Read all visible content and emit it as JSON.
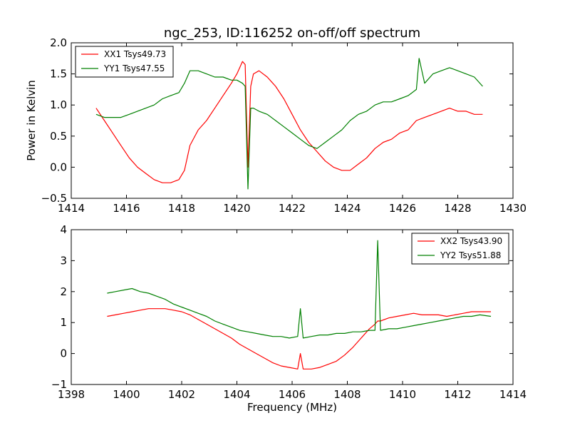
{
  "figure": {
    "title": "ngc_253, ID:116252 on-off/off spectrum"
  },
  "colors": {
    "xx": "#ff0000",
    "yy": "#008000",
    "axes": "#000000"
  },
  "chart_data": [
    {
      "type": "line",
      "title": "ngc_253, ID:116252 on-off/off spectrum",
      "xlabel": "",
      "ylabel": "Power in Kelvin",
      "xlim": [
        1414,
        1430
      ],
      "ylim": [
        -0.5,
        2.0
      ],
      "xticks": [
        "1414",
        "1416",
        "1418",
        "1420",
        "1422",
        "1424",
        "1426",
        "1428",
        "1430"
      ],
      "yticks": [
        "−0.5",
        "0.0",
        "0.5",
        "1.0",
        "1.5",
        "2.0"
      ],
      "grid": false,
      "legend": "top-left",
      "series": [
        {
          "name": "XX1 Tsys49.73",
          "color": "#ff0000",
          "x": [
            1414.9,
            1415.2,
            1415.5,
            1415.8,
            1416.1,
            1416.4,
            1416.7,
            1417.0,
            1417.3,
            1417.6,
            1417.9,
            1418.1,
            1418.3,
            1418.6,
            1418.9,
            1419.2,
            1419.5,
            1419.8,
            1420.0,
            1420.2,
            1420.3,
            1420.4,
            1420.5,
            1420.6,
            1420.8,
            1421.1,
            1421.4,
            1421.7,
            1422.0,
            1422.3,
            1422.6,
            1422.9,
            1423.2,
            1423.5,
            1423.8,
            1424.1,
            1424.4,
            1424.7,
            1425.0,
            1425.3,
            1425.6,
            1425.9,
            1426.2,
            1426.5,
            1426.8,
            1427.1,
            1427.4,
            1427.7,
            1428.0,
            1428.3,
            1428.6,
            1428.9
          ],
          "y": [
            0.95,
            0.75,
            0.55,
            0.35,
            0.15,
            0.0,
            -0.1,
            -0.2,
            -0.25,
            -0.25,
            -0.2,
            -0.05,
            0.35,
            0.6,
            0.75,
            0.95,
            1.15,
            1.35,
            1.5,
            1.7,
            1.65,
            0.0,
            1.3,
            1.5,
            1.55,
            1.45,
            1.3,
            1.1,
            0.85,
            0.6,
            0.4,
            0.25,
            0.1,
            0.0,
            -0.05,
            -0.05,
            0.05,
            0.15,
            0.3,
            0.4,
            0.45,
            0.55,
            0.6,
            0.75,
            0.8,
            0.85,
            0.9,
            0.95,
            0.9,
            0.9,
            0.85,
            0.85
          ]
        },
        {
          "name": "YY1 Tsys47.55",
          "color": "#008000",
          "x": [
            1414.9,
            1415.2,
            1415.5,
            1415.8,
            1416.1,
            1416.4,
            1416.7,
            1417.0,
            1417.3,
            1417.6,
            1417.9,
            1418.1,
            1418.3,
            1418.6,
            1418.9,
            1419.2,
            1419.5,
            1419.8,
            1420.0,
            1420.2,
            1420.3,
            1420.4,
            1420.5,
            1420.6,
            1420.8,
            1421.1,
            1421.4,
            1421.7,
            1422.0,
            1422.3,
            1422.6,
            1422.9,
            1423.2,
            1423.5,
            1423.8,
            1424.1,
            1424.4,
            1424.7,
            1425.0,
            1425.3,
            1425.6,
            1425.9,
            1426.2,
            1426.5,
            1426.6,
            1426.8,
            1427.1,
            1427.4,
            1427.7,
            1428.0,
            1428.3,
            1428.6,
            1428.9
          ],
          "y": [
            0.85,
            0.8,
            0.8,
            0.8,
            0.85,
            0.9,
            0.95,
            1.0,
            1.1,
            1.15,
            1.2,
            1.35,
            1.55,
            1.55,
            1.5,
            1.45,
            1.45,
            1.4,
            1.4,
            1.35,
            1.3,
            -0.35,
            0.95,
            0.95,
            0.9,
            0.85,
            0.75,
            0.65,
            0.55,
            0.45,
            0.35,
            0.3,
            0.4,
            0.5,
            0.6,
            0.75,
            0.85,
            0.9,
            1.0,
            1.05,
            1.05,
            1.1,
            1.15,
            1.25,
            1.75,
            1.35,
            1.5,
            1.55,
            1.6,
            1.55,
            1.5,
            1.45,
            1.3
          ]
        }
      ]
    },
    {
      "type": "line",
      "title": "",
      "xlabel": "Frequency (MHz)",
      "ylabel": "",
      "xlim": [
        1398,
        1414
      ],
      "ylim": [
        -1,
        4
      ],
      "xticks": [
        "1398",
        "1400",
        "1402",
        "1404",
        "1406",
        "1408",
        "1410",
        "1412",
        "1414"
      ],
      "yticks": [
        "−1",
        "0",
        "1",
        "2",
        "3",
        "4"
      ],
      "grid": false,
      "legend": "top-right",
      "series": [
        {
          "name": "XX2 Tsys43.90",
          "color": "#ff0000",
          "x": [
            1399.3,
            1399.6,
            1399.9,
            1400.2,
            1400.5,
            1400.8,
            1401.1,
            1401.4,
            1401.7,
            1402.0,
            1402.3,
            1402.6,
            1402.9,
            1403.2,
            1403.5,
            1403.8,
            1404.1,
            1404.4,
            1404.7,
            1405.0,
            1405.3,
            1405.6,
            1405.9,
            1406.2,
            1406.3,
            1406.4,
            1406.7,
            1407.0,
            1407.3,
            1407.6,
            1407.9,
            1408.2,
            1408.5,
            1408.8,
            1409.0,
            1409.1,
            1409.2,
            1409.5,
            1409.8,
            1410.1,
            1410.4,
            1410.7,
            1411.0,
            1411.3,
            1411.6,
            1411.9,
            1412.2,
            1412.5,
            1412.8,
            1413.2
          ],
          "y": [
            1.2,
            1.25,
            1.3,
            1.35,
            1.4,
            1.45,
            1.45,
            1.45,
            1.4,
            1.35,
            1.25,
            1.1,
            0.95,
            0.8,
            0.65,
            0.5,
            0.3,
            0.15,
            0.0,
            -0.15,
            -0.3,
            -0.4,
            -0.45,
            -0.5,
            0.0,
            -0.5,
            -0.5,
            -0.45,
            -0.35,
            -0.25,
            -0.05,
            0.2,
            0.5,
            0.8,
            0.95,
            1.05,
            1.05,
            1.15,
            1.2,
            1.25,
            1.3,
            1.25,
            1.25,
            1.25,
            1.2,
            1.25,
            1.3,
            1.35,
            1.35,
            1.35
          ]
        },
        {
          "name": "YY2 Tsys51.88",
          "color": "#008000",
          "x": [
            1399.3,
            1399.6,
            1399.9,
            1400.2,
            1400.5,
            1400.8,
            1401.1,
            1401.4,
            1401.7,
            1402.0,
            1402.3,
            1402.6,
            1402.9,
            1403.2,
            1403.5,
            1403.8,
            1404.1,
            1404.4,
            1404.7,
            1405.0,
            1405.3,
            1405.6,
            1405.9,
            1406.2,
            1406.3,
            1406.4,
            1406.7,
            1407.0,
            1407.3,
            1407.6,
            1407.9,
            1408.2,
            1408.5,
            1408.8,
            1409.0,
            1409.1,
            1409.2,
            1409.5,
            1409.8,
            1410.1,
            1410.4,
            1410.7,
            1411.0,
            1411.3,
            1411.6,
            1411.9,
            1412.2,
            1412.5,
            1412.8,
            1413.2
          ],
          "y": [
            1.95,
            2.0,
            2.05,
            2.1,
            2.0,
            1.95,
            1.85,
            1.75,
            1.6,
            1.5,
            1.4,
            1.3,
            1.2,
            1.05,
            0.95,
            0.85,
            0.75,
            0.7,
            0.65,
            0.6,
            0.55,
            0.55,
            0.5,
            0.55,
            1.45,
            0.5,
            0.55,
            0.6,
            0.6,
            0.65,
            0.65,
            0.7,
            0.7,
            0.75,
            0.75,
            3.65,
            0.75,
            0.8,
            0.8,
            0.85,
            0.9,
            0.95,
            1.0,
            1.05,
            1.1,
            1.15,
            1.2,
            1.2,
            1.25,
            1.2
          ]
        }
      ]
    }
  ]
}
